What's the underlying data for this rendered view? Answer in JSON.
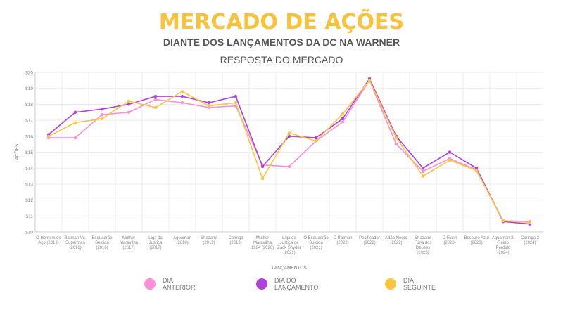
{
  "header": {
    "title": "MERCADO DE AÇÕES",
    "subtitle": "DIANTE DOS LANÇAMENTOS DA DC NA WARNER"
  },
  "chart_data": {
    "type": "line",
    "title": "RESPOSTA DO MERCADO",
    "xlabel": "LANÇAMENTOS",
    "ylabel": "AÇÕES",
    "ylim": [
      10,
      20
    ],
    "yticks": [
      "$10",
      "$11",
      "$12",
      "$13",
      "$14",
      "$15",
      "$16",
      "$17",
      "$18",
      "$19",
      "$20"
    ],
    "grid": true,
    "legend_position": "bottom",
    "categories": [
      "O Homem de Aço (2013)",
      "Batman Vs. Superman (2016)",
      "Esquadrão Suicida (2016)",
      "Mulher Maravilha (2017)",
      "Liga da Justiça (2017)",
      "Aquaman (2018)",
      "Shazam! (2019)",
      "Coringa (2019)",
      "Mulher Maravilha 1984 (2020)",
      "Liga da Justiça de Zack Snyder (2021)",
      "O Esquadrão Suicida (2021)",
      "O Batman (2022)",
      "Pacificador (2022)",
      "Adão Negro (2022)",
      "Shazam! Fúria dos Deuses (2023)",
      "O Flash (2023)",
      "Besouro Azul (2023)",
      "Aquaman 2: Reino Perdido (2024)",
      "Coringa 2 (2024)"
    ],
    "series": [
      {
        "name": "DIA ANTERIOR",
        "color": "#f98fd6",
        "values": [
          15.9,
          15.9,
          17.35,
          17.5,
          18.3,
          18.1,
          17.8,
          17.9,
          14.2,
          14.1,
          15.7,
          16.9,
          19.5,
          15.5,
          13.8,
          14.6,
          13.9,
          10.7,
          10.65
        ]
      },
      {
        "name": "DIA DO LANÇAMENTO",
        "color": "#ad44d9",
        "values": [
          16.1,
          17.5,
          17.7,
          18.0,
          18.5,
          18.5,
          18.1,
          18.5,
          14.1,
          16.0,
          15.9,
          17.1,
          19.6,
          16.0,
          14.0,
          15.0,
          14.0,
          10.65,
          10.5
        ]
      },
      {
        "name": "DIA SEGUINTE",
        "color": "#f9c440",
        "values": [
          16.0,
          16.85,
          17.1,
          18.2,
          17.8,
          18.8,
          17.9,
          18.1,
          13.35,
          16.2,
          15.7,
          17.4,
          19.5,
          15.9,
          13.5,
          14.5,
          13.85,
          10.7,
          10.6
        ]
      }
    ]
  }
}
